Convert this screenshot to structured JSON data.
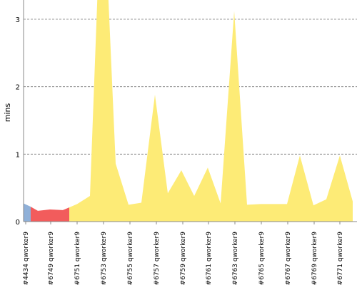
{
  "chart_data": {
    "type": "area",
    "ylabel": "mins",
    "ylim": [
      0,
      3.3
    ],
    "yticks": [
      0,
      1,
      2,
      3
    ],
    "grid": true,
    "x": [
      "#4434 qworker9",
      "",
      "#6749 qworker9",
      "",
      "",
      "",
      "#6751 qworker9",
      "",
      "",
      "",
      "#6753 qworker9",
      "",
      "",
      "",
      "#6755 qworker9",
      "",
      "",
      "",
      "#6757 qworker9",
      "",
      "",
      "",
      "#6759 qworker9",
      "",
      "",
      "",
      "#6761 qworker9",
      "",
      "",
      "",
      "#6763 qworker9",
      "",
      "",
      "",
      "#6765 qworker9",
      "",
      "",
      "",
      "#6767 qworker9",
      "",
      "",
      "",
      "#6769 qworker9",
      "",
      "",
      "",
      "#6771 qworker9",
      "",
      ""
    ],
    "tick_labels": [
      "#4434 qworker9",
      "#6749 qworker9",
      "#6751 qworker9",
      "#6753 qworker9",
      "#6755 qworker9",
      "#6757 qworker9",
      "#6759 qworker9",
      "#6761 qworker9",
      "#6763 qworker9",
      "#6765 qworker9",
      "#6767 qworker9",
      "#6769 qworker9",
      "#6771 qworker9"
    ],
    "series_colors": {
      "blue": "#8fb0d8",
      "red": "#f25c5c",
      "yellow": "#fdeb76"
    },
    "points": [
      {
        "x": 33,
        "y": 0.27,
        "c": "blue"
      },
      {
        "x": 43,
        "y": 0.22,
        "c": "blue"
      },
      {
        "x": 53,
        "y": 0.16,
        "c": "red"
      },
      {
        "x": 70,
        "y": 0.18,
        "c": "red"
      },
      {
        "x": 88,
        "y": 0.17,
        "c": "red"
      },
      {
        "x": 97,
        "y": 0.21,
        "c": "red"
      },
      {
        "x": 108,
        "y": 0.26,
        "c": "yellow"
      },
      {
        "x": 126,
        "y": 0.38,
        "c": "yellow"
      },
      {
        "x": 137,
        "y": 3.5,
        "c": "yellow"
      },
      {
        "x": 151,
        "y": 3.5,
        "c": "yellow"
      },
      {
        "x": 162,
        "y": 0.86,
        "c": "yellow"
      },
      {
        "x": 180,
        "y": 0.25,
        "c": "yellow"
      },
      {
        "x": 198,
        "y": 0.28,
        "c": "yellow"
      },
      {
        "x": 217,
        "y": 1.88,
        "c": "yellow"
      },
      {
        "x": 235,
        "y": 0.42,
        "c": "yellow"
      },
      {
        "x": 254,
        "y": 0.76,
        "c": "yellow"
      },
      {
        "x": 272,
        "y": 0.38,
        "c": "yellow"
      },
      {
        "x": 291,
        "y": 0.8,
        "c": "yellow"
      },
      {
        "x": 309,
        "y": 0.27,
        "c": "yellow"
      },
      {
        "x": 328,
        "y": 3.12,
        "c": "yellow"
      },
      {
        "x": 346,
        "y": 0.25,
        "c": "yellow"
      },
      {
        "x": 365,
        "y": 0.26,
        "c": "yellow"
      },
      {
        "x": 383,
        "y": 0.26,
        "c": "yellow"
      },
      {
        "x": 402,
        "y": 0.26,
        "c": "yellow"
      },
      {
        "x": 420,
        "y": 0.98,
        "c": "yellow"
      },
      {
        "x": 439,
        "y": 0.24,
        "c": "yellow"
      },
      {
        "x": 457,
        "y": 0.33,
        "c": "yellow"
      },
      {
        "x": 476,
        "y": 0.98,
        "c": "yellow"
      },
      {
        "x": 494,
        "y": 0.3,
        "c": "yellow"
      }
    ]
  }
}
